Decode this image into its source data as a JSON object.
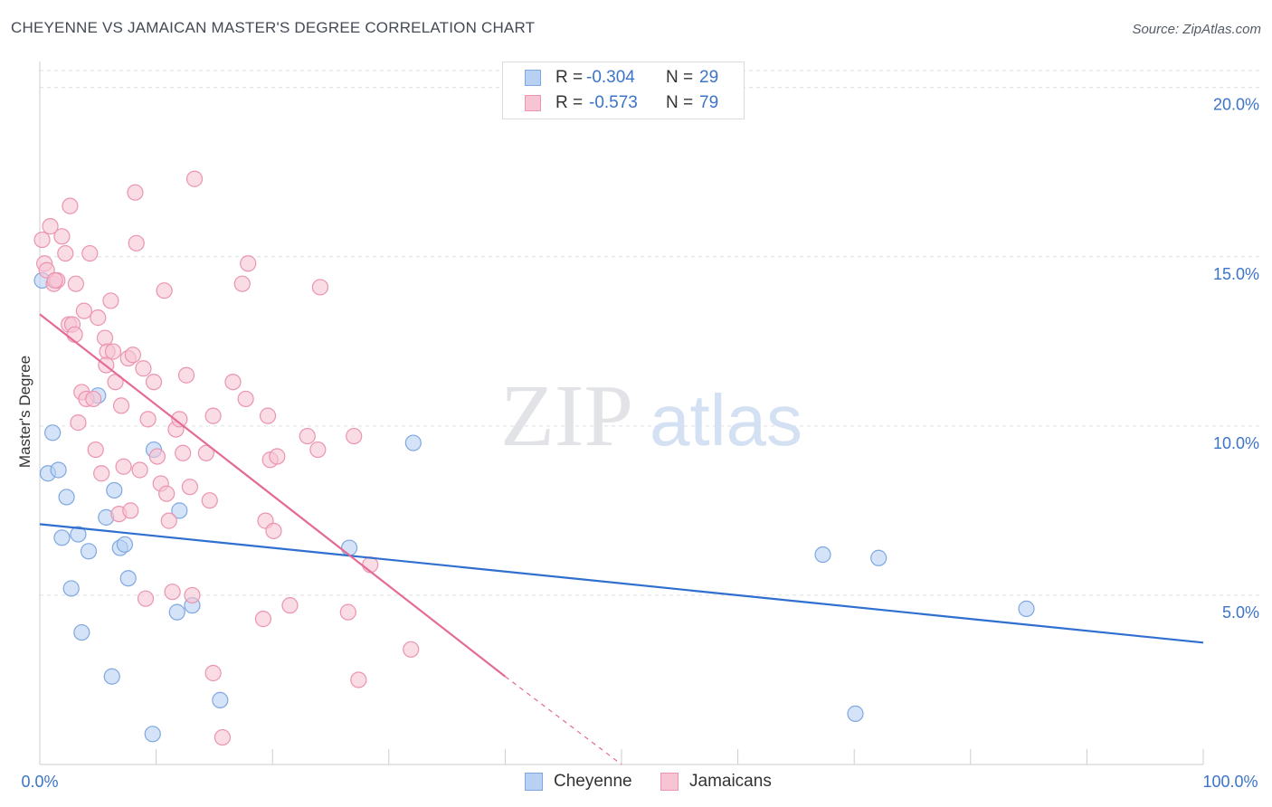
{
  "header": {
    "title": "CHEYENNE VS JAMAICAN MASTER'S DEGREE CORRELATION CHART",
    "source": "Source: ZipAtlas.com"
  },
  "legend": {
    "series": [
      {
        "r_label": "R =",
        "r_value": "-0.304",
        "n_label": "N =",
        "n_value": "29"
      },
      {
        "r_label": "R =",
        "r_value": "-0.573",
        "n_label": "N =",
        "n_value": "79"
      }
    ]
  },
  "bottom_legend": [
    "Cheyenne",
    "Jamaicans"
  ],
  "watermark": {
    "part1": "ZIP",
    "part2": "atlas"
  },
  "colors": {
    "cheyenne_fill": "#b8d1f3",
    "cheyenne_stroke": "#7fa8e0",
    "cheyenne_line": "#2f6fd0",
    "jamaican_fill": "#f7c4d4",
    "jamaican_stroke": "#eb94b0",
    "jamaican_line": "#e56a96",
    "tick": "#3b74c9",
    "grid": "#dcdfe4"
  },
  "chart_data": {
    "type": "scatter",
    "title": "CHEYENNE VS JAMAICAN MASTER'S DEGREE CORRELATION CHART",
    "xlabel": "",
    "ylabel": "Master's Degree",
    "xlim": [
      0,
      100
    ],
    "ylim": [
      0,
      20.5
    ],
    "x_tick_labels": [
      "0.0%",
      "100.0%"
    ],
    "y_ticks": [
      5,
      10,
      15,
      20
    ],
    "y_tick_labels": [
      "5.0%",
      "10.0%",
      "15.0%",
      "20.0%"
    ],
    "grid": true,
    "series": [
      {
        "name": "Cheyenne",
        "r": -0.304,
        "n": 29,
        "points": [
          [
            0.2,
            14.3
          ],
          [
            0.7,
            8.6
          ],
          [
            1.1,
            9.8
          ],
          [
            1.6,
            8.7
          ],
          [
            1.9,
            6.7
          ],
          [
            2.3,
            7.9
          ],
          [
            2.7,
            5.2
          ],
          [
            3.3,
            6.8
          ],
          [
            3.6,
            3.9
          ],
          [
            4.2,
            6.3
          ],
          [
            5.0,
            10.9
          ],
          [
            5.7,
            7.3
          ],
          [
            6.2,
            2.6
          ],
          [
            6.4,
            8.1
          ],
          [
            6.9,
            6.4
          ],
          [
            7.3,
            6.5
          ],
          [
            7.6,
            5.5
          ],
          [
            9.7,
            0.9
          ],
          [
            9.8,
            9.3
          ],
          [
            11.8,
            4.5
          ],
          [
            12.0,
            7.5
          ],
          [
            13.1,
            4.7
          ],
          [
            15.5,
            1.9
          ],
          [
            26.6,
            6.4
          ],
          [
            32.1,
            9.5
          ],
          [
            67.3,
            6.2
          ],
          [
            70.1,
            1.5
          ],
          [
            72.1,
            6.1
          ],
          [
            84.8,
            4.6
          ]
        ],
        "trend": {
          "x": [
            0,
            100
          ],
          "y": [
            7.1,
            3.6
          ]
        }
      },
      {
        "name": "Jamaicans",
        "r": -0.573,
        "n": 79,
        "points": [
          [
            0.2,
            15.5
          ],
          [
            0.4,
            14.8
          ],
          [
            0.6,
            14.6
          ],
          [
            0.9,
            15.9
          ],
          [
            1.2,
            14.2
          ],
          [
            1.5,
            14.3
          ],
          [
            1.9,
            15.6
          ],
          [
            2.2,
            15.1
          ],
          [
            2.5,
            13.0
          ],
          [
            2.6,
            16.5
          ],
          [
            2.8,
            13.0
          ],
          [
            3.0,
            12.7
          ],
          [
            3.3,
            10.1
          ],
          [
            3.6,
            11.0
          ],
          [
            3.8,
            13.4
          ],
          [
            4.0,
            10.8
          ],
          [
            4.3,
            15.1
          ],
          [
            4.6,
            10.8
          ],
          [
            4.8,
            9.3
          ],
          [
            5.0,
            13.2
          ],
          [
            5.3,
            8.6
          ],
          [
            5.6,
            12.6
          ],
          [
            5.8,
            12.2
          ],
          [
            6.1,
            13.7
          ],
          [
            6.3,
            12.2
          ],
          [
            6.5,
            11.3
          ],
          [
            6.8,
            7.4
          ],
          [
            7.0,
            10.6
          ],
          [
            7.2,
            8.8
          ],
          [
            7.6,
            12.0
          ],
          [
            7.8,
            7.5
          ],
          [
            8.2,
            16.9
          ],
          [
            8.3,
            15.4
          ],
          [
            8.6,
            8.7
          ],
          [
            8.9,
            11.7
          ],
          [
            9.1,
            4.9
          ],
          [
            9.3,
            10.2
          ],
          [
            9.8,
            11.3
          ],
          [
            10.1,
            9.1
          ],
          [
            10.4,
            8.3
          ],
          [
            10.7,
            14.0
          ],
          [
            10.9,
            8.0
          ],
          [
            11.1,
            7.2
          ],
          [
            11.4,
            5.1
          ],
          [
            11.7,
            9.9
          ],
          [
            12.0,
            10.2
          ],
          [
            12.3,
            9.2
          ],
          [
            12.6,
            11.5
          ],
          [
            12.9,
            8.2
          ],
          [
            13.1,
            5.0
          ],
          [
            13.3,
            17.3
          ],
          [
            14.3,
            9.2
          ],
          [
            14.6,
            7.8
          ],
          [
            14.9,
            2.7
          ],
          [
            14.9,
            10.3
          ],
          [
            15.7,
            0.8
          ],
          [
            16.6,
            11.3
          ],
          [
            17.4,
            14.2
          ],
          [
            17.7,
            10.8
          ],
          [
            17.9,
            14.8
          ],
          [
            19.2,
            4.3
          ],
          [
            19.4,
            7.2
          ],
          [
            19.6,
            10.3
          ],
          [
            19.8,
            9.0
          ],
          [
            20.1,
            6.9
          ],
          [
            20.4,
            9.1
          ],
          [
            21.5,
            4.7
          ],
          [
            23.0,
            9.7
          ],
          [
            23.9,
            9.3
          ],
          [
            24.1,
            14.1
          ],
          [
            26.5,
            4.5
          ],
          [
            27.0,
            9.7
          ],
          [
            27.4,
            2.5
          ],
          [
            28.4,
            5.9
          ],
          [
            31.9,
            3.4
          ],
          [
            8.0,
            12.1
          ],
          [
            5.7,
            11.8
          ],
          [
            3.1,
            14.2
          ],
          [
            1.3,
            14.3
          ]
        ],
        "trend": {
          "x": [
            0,
            40
          ],
          "y": [
            13.3,
            2.6
          ],
          "dashed_extension": {
            "x": [
              40,
              50
            ],
            "y": [
              2.6,
              0
            ]
          }
        }
      }
    ]
  }
}
